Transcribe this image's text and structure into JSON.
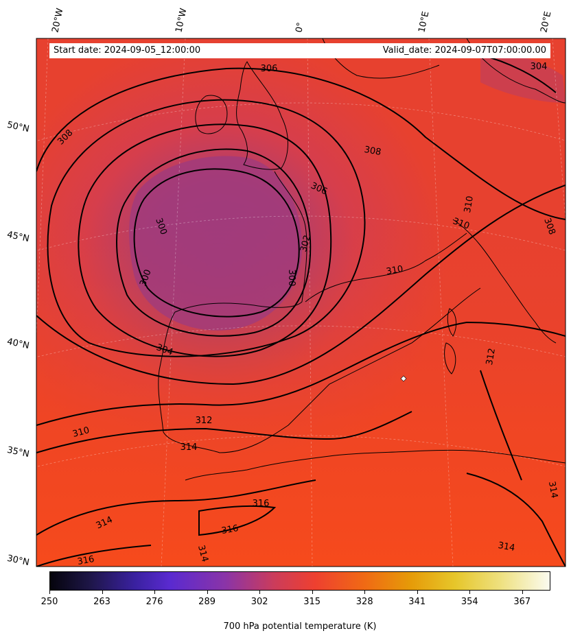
{
  "header": {
    "start_date": "Start date: 2024-09-05_12:00:00",
    "valid_date": "Valid_date: 2024-09-07T07:00:00.00"
  },
  "map": {
    "field": "potential temperature",
    "level": "700 hPa",
    "longitude_labels": [
      "20°W",
      "10°W",
      "0°",
      "10°E",
      "20°E"
    ],
    "latitude_labels": [
      "50°N",
      "45°N",
      "40°N",
      "35°N",
      "30°N"
    ],
    "contour_labels": [
      "306",
      "304",
      "308",
      "308",
      "306",
      "300",
      "302",
      "300",
      "300",
      "310",
      "310",
      "310",
      "308",
      "304",
      "312",
      "310",
      "312",
      "314",
      "316",
      "314",
      "316",
      "314",
      "316",
      "314",
      "314"
    ],
    "colors": {
      "cold_core": "#a03c7c",
      "mid": "#d93e48",
      "warm": "#f3471f",
      "coast": "#000000"
    },
    "marker": "white-diamond"
  },
  "colorbar": {
    "ticks": [
      "250",
      "263",
      "276",
      "289",
      "302",
      "315",
      "328",
      "341",
      "354",
      "367"
    ],
    "tick_values": [
      250,
      263,
      276,
      289,
      302,
      315,
      328,
      341,
      354,
      367
    ],
    "range": [
      250,
      374
    ],
    "label": "700 hPa potential temperature (K)"
  }
}
